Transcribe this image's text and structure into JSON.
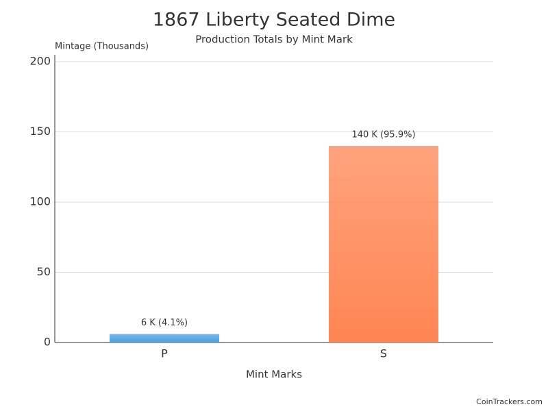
{
  "chart_data": {
    "type": "bar",
    "title": "1867 Liberty Seated Dime",
    "subtitle": "Production Totals by Mint Mark",
    "y_label": "Mintage (Thousands)",
    "x_label": "Mint Marks",
    "footer": "CoinTrackers.com",
    "categories": [
      "P",
      "S"
    ],
    "values": [
      6,
      140
    ],
    "value_labels": [
      "6 K (4.1%)",
      "140 K (95.9%)"
    ],
    "colors": [
      "#4a9fe0",
      "#ff8552"
    ],
    "ylim": [
      0,
      200
    ],
    "yticks": [
      0,
      50,
      100,
      150,
      200
    ],
    "grid": true
  }
}
